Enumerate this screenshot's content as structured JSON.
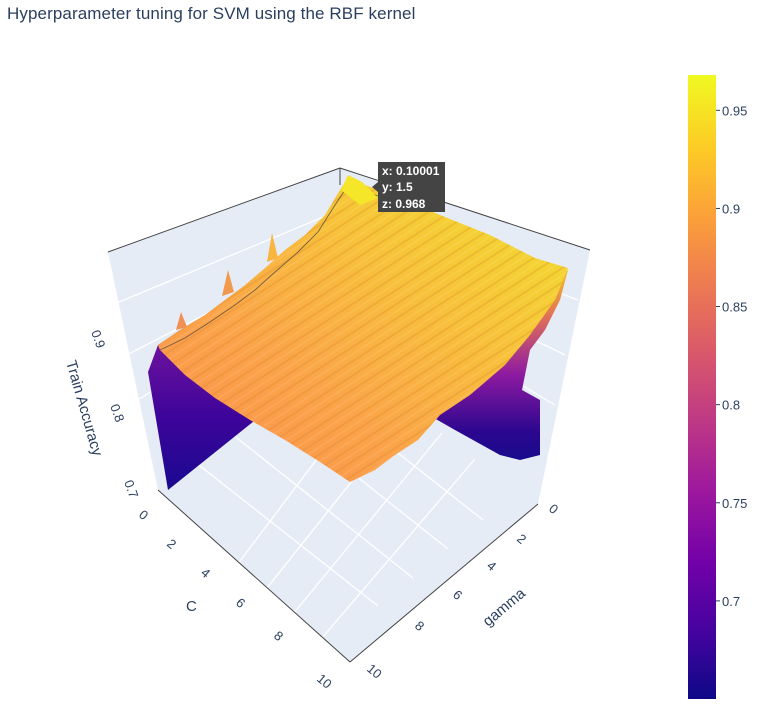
{
  "chart_data": {
    "type": "surface",
    "title": "Hyperparameter tuning for SVM using the RBF kernel",
    "x_axis": {
      "label": "gamma",
      "range": [
        0,
        10
      ],
      "ticks": [
        "0",
        "2",
        "4",
        "6",
        "8",
        "10"
      ]
    },
    "y_axis": {
      "label": "C",
      "range": [
        0,
        10
      ],
      "ticks": [
        "0",
        "2",
        "4",
        "6",
        "8",
        "10"
      ]
    },
    "z_axis": {
      "label": "Train Accuracy",
      "range": [
        0.65,
        0.968
      ],
      "ticks": [
        "0.7",
        "0.8",
        "0.9"
      ]
    },
    "colorbar": {
      "range": [
        0.65,
        0.968
      ],
      "ticks": [
        "0.7",
        "0.75",
        "0.8",
        "0.85",
        "0.9",
        "0.95"
      ],
      "colorscale": [
        "#0d0887",
        "#46039f",
        "#7201a8",
        "#9c179e",
        "#bd3786",
        "#d8576b",
        "#ed7953",
        "#fb9f3a",
        "#fdca26",
        "#f0f921"
      ]
    },
    "surface_profile": {
      "note_c_values": [
        0.1,
        1.5,
        2,
        4,
        6,
        8,
        10
      ],
      "accuracy_at_gamma_0_1": [
        0.83,
        0.968,
        0.95,
        0.93,
        0.91,
        0.9,
        0.89
      ],
      "accuracy_at_gamma_10": [
        0.7,
        0.94,
        0.93,
        0.91,
        0.89,
        0.88,
        0.87
      ]
    },
    "hover": {
      "x": "x: 0.10001",
      "y": "y: 1.5",
      "z": "z: 0.968"
    },
    "grid": true
  }
}
